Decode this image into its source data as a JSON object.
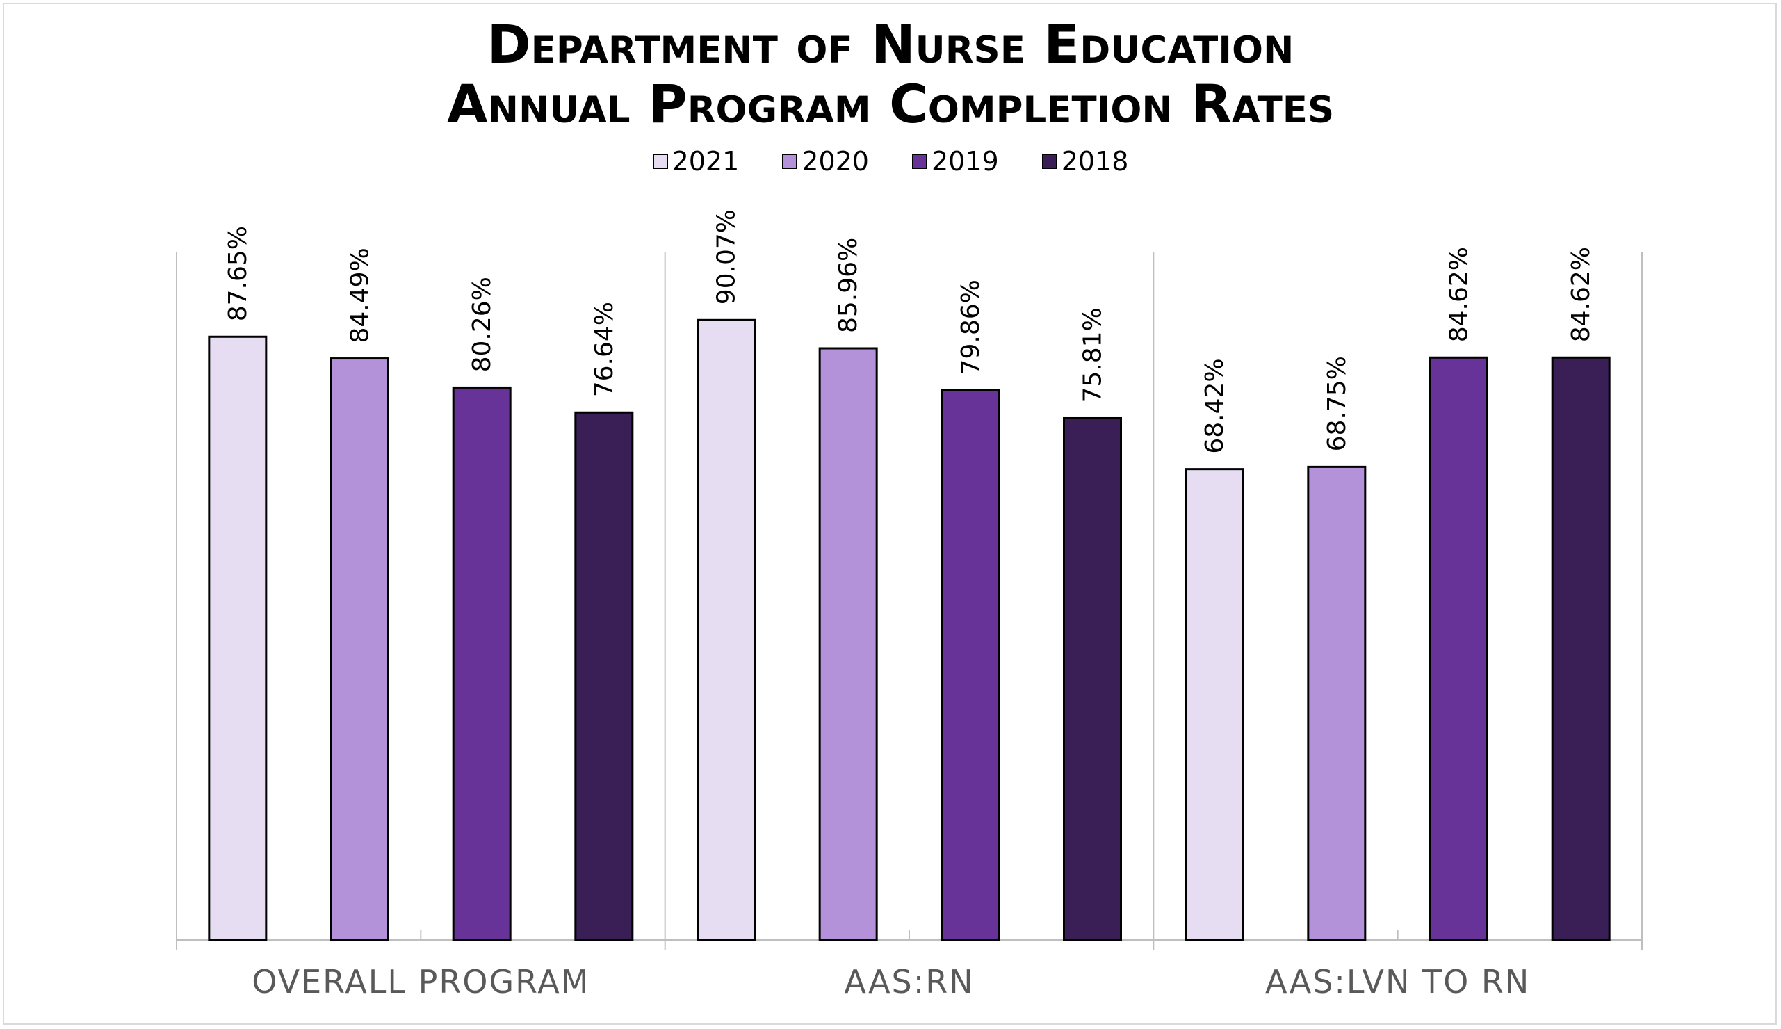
{
  "chart_data": {
    "type": "bar",
    "title": "Department of Nurse Education",
    "subtitle": "Annual Program Completion Rates",
    "xlabel": "",
    "ylabel": "",
    "ylim": [
      0,
      100
    ],
    "grid": false,
    "legend_position": "top",
    "categories": [
      "OVERALL PROGRAM",
      "AAS:RN",
      "AAS:LVN TO RN"
    ],
    "series": [
      {
        "name": "2021",
        "color": "#e6ddf2",
        "values": [
          87.65,
          90.07,
          68.42
        ],
        "labels": [
          "87.65%",
          "90.07%",
          "68.42%"
        ]
      },
      {
        "name": "2020",
        "color": "#b392d9",
        "values": [
          84.49,
          85.96,
          68.75
        ],
        "labels": [
          "84.49%",
          "85.96%",
          "68.75%"
        ]
      },
      {
        "name": "2019",
        "color": "#683399",
        "values": [
          80.26,
          79.86,
          84.62
        ],
        "labels": [
          "80.26%",
          "79.86%",
          "84.62%"
        ]
      },
      {
        "name": "2018",
        "color": "#3a1f57",
        "values": [
          76.64,
          75.81,
          84.62
        ],
        "labels": [
          "76.64%",
          "75.81%",
          "84.62%"
        ]
      }
    ]
  }
}
